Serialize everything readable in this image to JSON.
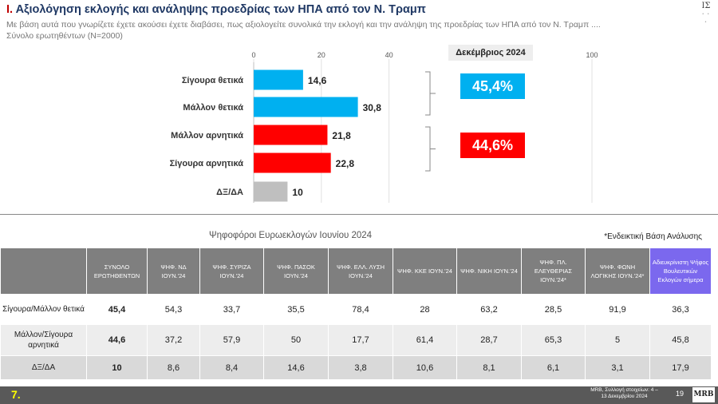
{
  "header": {
    "title_number": "Ι.",
    "title": "Αξιολόγηση εκλογής και ανάληψης προεδρίας των ΗΠΑ από τον Ν. Τραμπ",
    "subtitle": "Με βάση αυτά που γνωρίζετε έχετε ακούσει έχετε διαβάσει, πως αξιολογείτε συνολικά την εκλογή και την ανάληψη της προεδρίας των ΗΠΑ από τον Ν. Τραμπ ....",
    "base": "Σύνολο ερωτηθέντων (Ν=2000)",
    "logo_text": "ΙΣ"
  },
  "chart_data": {
    "type": "bar",
    "orientation": "horizontal",
    "categories": [
      "Σίγουρα θετικά",
      "Μάλλον θετικά",
      "Μάλλον αρνητικά",
      "Σίγουρα αρνητικά",
      "ΔΞ/ΔΑ"
    ],
    "values": [
      14.6,
      30.8,
      21.8,
      22.8,
      10
    ],
    "value_labels": [
      "14,6",
      "30,8",
      "21,8",
      "22,8",
      "10"
    ],
    "colors": [
      "#00b0f0",
      "#00b0f0",
      "#ff0000",
      "#ff0000",
      "#bfbfbf"
    ],
    "xlim": [
      0,
      100
    ],
    "x_ticks": [
      "0",
      "20",
      "40",
      "100"
    ],
    "x_tick_values": [
      0,
      20,
      40,
      100
    ],
    "summary": {
      "label": "Δεκέμβριος 2024",
      "positive": "45,4%",
      "negative": "44,6%",
      "positive_color": "#00b0f0",
      "negative_color": "#ff0000"
    }
  },
  "table": {
    "title": "Ψηφοφόροι Ευρωεκλογών Ιουνίου 2024",
    "note": "*Ενδεικτική Βάση Ανάλυσης",
    "headers": [
      "ΣΥΝΟΛΟ ΕΡΩΤΗΘΕΝΤΩΝ",
      "ΨΗΦ. ΝΔ ΙΟΥΝ.'24",
      "ΨΗΦ. ΣΥΡΙΖΑ ΙΟΥΝ.'24",
      "ΨΗΦ. ΠΑΣΟΚ ΙΟΥΝ.'24",
      "ΨΗΦ. ΕΛΛ. ΛΥΣΗ ΙΟΥΝ.'24",
      "ΨΗΦ. ΚΚΕ ΙΟΥΝ.'24",
      "ΨΗΦ. ΝΙΚΗ ΙΟΥΝ.'24",
      "ΨΗΦ. ΠΛ. ΕΛΕΥΘΕΡΙΑΣ ΙΟΥΝ.'24*",
      "ΨΗΦ. ΦΩΝΗ ΛΟΓΙΚΗΣ ΙΟΥΝ.'24*",
      "Αδιευκρίνιστη Ψήφος Βουλευτικών Εκλογών σήμερα"
    ],
    "rows": [
      {
        "label": "Σίγουρα/Μάλλον θετικά",
        "cells": [
          "45,4",
          "54,3",
          "33,7",
          "35,5",
          "78,4",
          "28",
          "63,2",
          "28,5",
          "91,9",
          "36,3"
        ]
      },
      {
        "label": "Μάλλον/Σίγουρα αρνητικά",
        "cells": [
          "44,6",
          "37,2",
          "57,9",
          "50",
          "17,7",
          "61,4",
          "28,7",
          "65,3",
          "5",
          "45,8"
        ]
      },
      {
        "label": "ΔΞ/ΔΑ",
        "cells": [
          "10",
          "8,6",
          "8,4",
          "14,6",
          "3,8",
          "10,6",
          "8,1",
          "6,1",
          "3,1",
          "17,9"
        ]
      }
    ]
  },
  "footer": {
    "page_number": "7.",
    "source": "MRB, Συλλογή στοιχείων: 4 –13 Δεκεμβρίου 2024",
    "slide_number": "19",
    "logo": "MRB"
  }
}
